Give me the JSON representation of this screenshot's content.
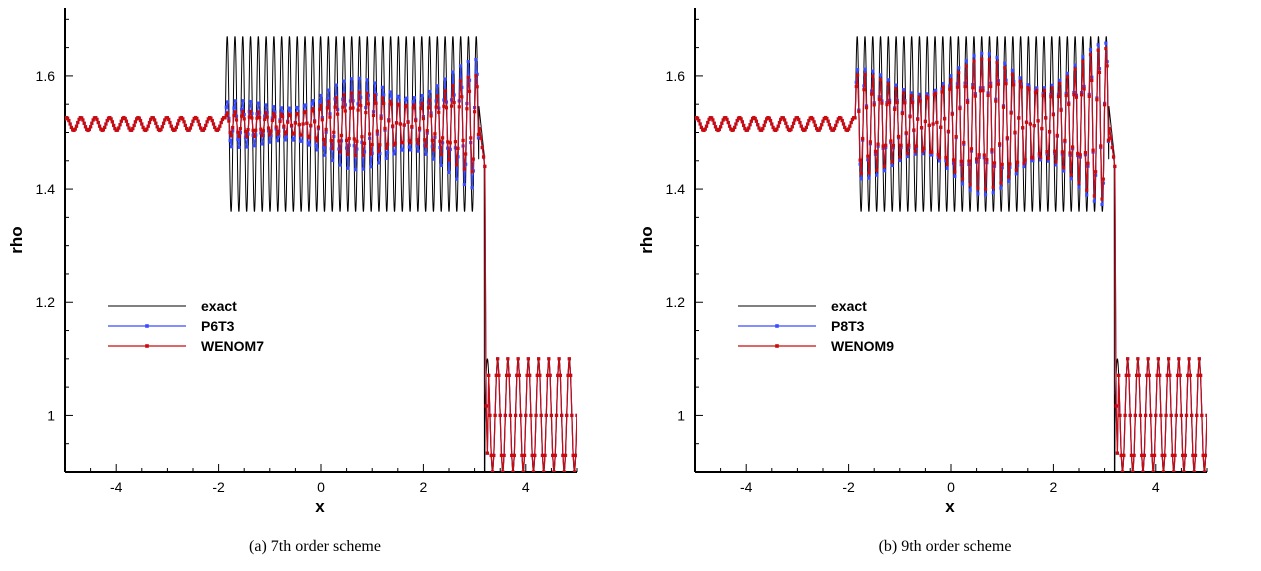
{
  "chart_data": [
    {
      "type": "line",
      "caption": "(a) 7th order scheme",
      "xlabel": "x",
      "ylabel": "rho",
      "xlim": [
        -5,
        5
      ],
      "ylim": [
        0.9,
        1.72
      ],
      "xticks": [
        -4,
        -2,
        0,
        2,
        4
      ],
      "xtick_labels": [
        "-4",
        "-2",
        "0",
        "2",
        "4"
      ],
      "yticks": [
        1,
        1.2,
        1.4,
        1.6
      ],
      "ytick_labels": [
        "1",
        "1.2",
        "1.4",
        "1.6"
      ],
      "grid": false,
      "legend_position": "center-left",
      "colors": {
        "exact": "#000000",
        "scheme_a": "#3a4cff",
        "scheme_b": "#cc0a0a"
      },
      "series": [
        {
          "name": "exact",
          "markers": false,
          "description_profile": {
            "pre_shock_level": 1.515,
            "pre_shock_amplitude": 0.012,
            "oscillation_region": [
              -1.87,
              3.08
            ],
            "oscillation_high": 1.67,
            "oscillation_low": 1.36,
            "shock_x": 3.2,
            "post_shock_high": 1.1,
            "post_shock_low": 0.9
          }
        },
        {
          "name": "P6T3",
          "markers": true,
          "description_profile": {
            "oscillation_start_amplitude": 0.04,
            "oscillation_end_amplitude": 0.12
          }
        },
        {
          "name": "WENOM7",
          "markers": true,
          "description_profile": {
            "oscillation_start_amplitude": 0.02,
            "oscillation_end_amplitude": 0.09
          }
        }
      ]
    },
    {
      "type": "line",
      "caption": "(b) 9th order scheme",
      "xlabel": "x",
      "ylabel": "rho",
      "xlim": [
        -5,
        5
      ],
      "ylim": [
        0.9,
        1.72
      ],
      "xticks": [
        -4,
        -2,
        0,
        2,
        4
      ],
      "xtick_labels": [
        "-4",
        "-2",
        "0",
        "2",
        "4"
      ],
      "yticks": [
        1,
        1.2,
        1.4,
        1.6
      ],
      "ytick_labels": [
        "1",
        "1.2",
        "1.4",
        "1.6"
      ],
      "grid": false,
      "legend_position": "center-left",
      "colors": {
        "exact": "#000000",
        "scheme_a": "#3a4cff",
        "scheme_b": "#cc0a0a"
      },
      "series": [
        {
          "name": "exact",
          "markers": false,
          "description_profile": {
            "pre_shock_level": 1.515,
            "pre_shock_amplitude": 0.012,
            "oscillation_region": [
              -1.87,
              3.08
            ],
            "oscillation_high": 1.67,
            "oscillation_low": 1.36,
            "shock_x": 3.2,
            "post_shock_high": 1.1,
            "post_shock_low": 0.9
          }
        },
        {
          "name": "P8T3",
          "markers": true,
          "description_profile": {
            "oscillation_start_amplitude": 0.1,
            "oscillation_end_amplitude": 0.15
          }
        },
        {
          "name": "WENOM9",
          "markers": true,
          "description_profile": {
            "oscillation_start_amplitude": 0.09,
            "oscillation_end_amplitude": 0.14
          }
        }
      ]
    }
  ]
}
